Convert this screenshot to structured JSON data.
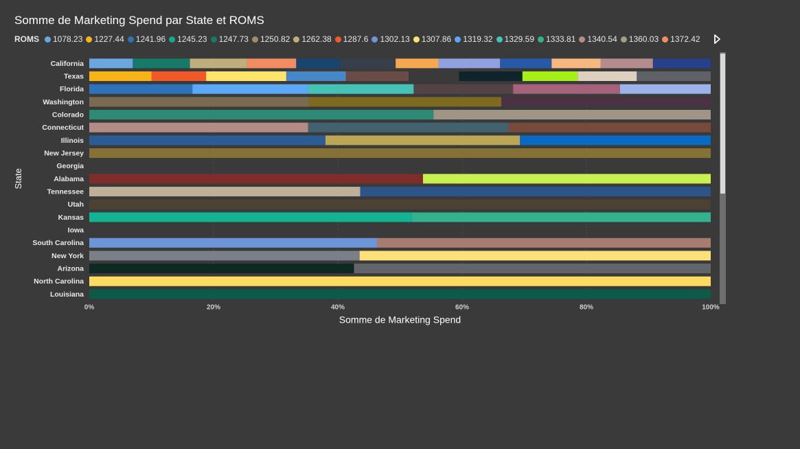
{
  "chart_data": {
    "type": "bar",
    "orientation": "horizontal",
    "stacking": "percent",
    "title": "Somme de Marketing Spend par State et ROMS",
    "xlabel": "Somme de Marketing Spend",
    "ylabel": "State",
    "xlim": [
      0,
      100
    ],
    "x_ticks": [
      "0%",
      "20%",
      "40%",
      "60%",
      "80%",
      "100%"
    ],
    "legend_label": "ROMS",
    "legend": [
      {
        "name": "1078.23",
        "color": "#6aa6e0"
      },
      {
        "name": "1227.44",
        "color": "#f6b418"
      },
      {
        "name": "1241.96",
        "color": "#2e73ba"
      },
      {
        "name": "1245.23",
        "color": "#14a98e"
      },
      {
        "name": "1247.73",
        "color": "#167a68"
      },
      {
        "name": "1250.82",
        "color": "#9e8d66"
      },
      {
        "name": "1262.38",
        "color": "#bfae7c"
      },
      {
        "name": "1287.6",
        "color": "#f05a28"
      },
      {
        "name": "1302.13",
        "color": "#6c96d8"
      },
      {
        "name": "1307.86",
        "color": "#fde46a"
      },
      {
        "name": "1319.32",
        "color": "#5aa8f6"
      },
      {
        "name": "1329.59",
        "color": "#45c1b5"
      },
      {
        "name": "1333.81",
        "color": "#33b38d"
      },
      {
        "name": "1340.54",
        "color": "#b48c86"
      },
      {
        "name": "1360.03",
        "color": "#a89c80"
      },
      {
        "name": "1372.42",
        "color": "#f28d62"
      }
    ],
    "categories": [
      "California",
      "Texas",
      "Florida",
      "Washington",
      "Colorado",
      "Connecticut",
      "Illinois",
      "New Jersey",
      "Georgia",
      "Alabama",
      "Tennessee",
      "Utah",
      "Kansas",
      "Iowa",
      "South Carolina",
      "New York",
      "Arizona",
      "North Carolina",
      "Louisiana"
    ],
    "stacks": [
      [
        {
          "value": 7,
          "color": "#6aa6e0"
        },
        {
          "value": 9.2,
          "color": "#167a68"
        },
        {
          "value": 9.2,
          "color": "#bfae7c"
        },
        {
          "value": 7.9,
          "color": "#f28d62"
        },
        {
          "value": 7.1,
          "color": "#16456f"
        },
        {
          "value": 8.9,
          "color": "#37404a"
        },
        {
          "value": 6.9,
          "color": "#f5a84f"
        },
        {
          "value": 9.9,
          "color": "#8fa1e0"
        },
        {
          "value": 8.3,
          "color": "#2858a8"
        },
        {
          "value": 7.9,
          "color": "#f7b880"
        },
        {
          "value": 8.4,
          "color": "#b48c8e"
        },
        {
          "value": 9.3,
          "color": "#27408b"
        }
      ],
      [
        {
          "value": 10,
          "color": "#f6b418"
        },
        {
          "value": 8.8,
          "color": "#f05a28"
        },
        {
          "value": 12.9,
          "color": "#fde46a"
        },
        {
          "value": 9.6,
          "color": "#4587c7"
        },
        {
          "value": 10.1,
          "color": "#6a4c46"
        },
        {
          "value": 8.1,
          "color": "#3a3a3a"
        },
        {
          "value": 10.2,
          "color": "#0e232a"
        },
        {
          "value": 8.9,
          "color": "#a6f018"
        },
        {
          "value": 9.5,
          "color": "#ddd0be"
        },
        {
          "value": 11.9,
          "color": "#5e6266"
        }
      ],
      [
        {
          "value": 16.6,
          "color": "#2e73ba"
        },
        {
          "value": 18.6,
          "color": "#5aa8f6"
        },
        {
          "value": 17,
          "color": "#45c1b5"
        },
        {
          "value": 16,
          "color": "#544344"
        },
        {
          "value": 17.2,
          "color": "#a4637a"
        },
        {
          "value": 14.6,
          "color": "#9cb2e8"
        }
      ],
      [
        {
          "value": 35.3,
          "color": "#7a6a50"
        },
        {
          "value": 31,
          "color": "#7d6a1e"
        },
        {
          "value": 33.7,
          "color": "#4a3242"
        }
      ],
      [
        {
          "value": 55.4,
          "color": "#2e8b73"
        },
        {
          "value": 44.6,
          "color": "#a09486"
        }
      ],
      [
        {
          "value": 35.2,
          "color": "#b48c86"
        },
        {
          "value": 32.3,
          "color": "#426270"
        },
        {
          "value": 32.5,
          "color": "#784a3a"
        }
      ],
      [
        {
          "value": 38,
          "color": "#2c5c94"
        },
        {
          "value": 31.3,
          "color": "#bba556"
        },
        {
          "value": 30.7,
          "color": "#0a6ac2"
        }
      ],
      [
        {
          "value": 100,
          "color": "#857136"
        }
      ],
      [],
      [
        {
          "value": 53.7,
          "color": "#7e2e2a"
        },
        {
          "value": 46.3,
          "color": "#c8f050"
        }
      ],
      [
        {
          "value": 43.6,
          "color": "#bdb096"
        },
        {
          "value": 56.4,
          "color": "#2c5488"
        }
      ],
      [
        {
          "value": 100,
          "color": "#4c4234"
        }
      ],
      [
        {
          "value": 51.9,
          "color": "#12b494"
        },
        {
          "value": 48.1,
          "color": "#33b38d"
        }
      ],
      [],
      [
        {
          "value": 46.3,
          "color": "#6c96d8"
        },
        {
          "value": 53.7,
          "color": "#a87c6e"
        }
      ],
      [
        {
          "value": 43.5,
          "color": "#7a8086"
        },
        {
          "value": 56.5,
          "color": "#fde07a"
        }
      ],
      [
        {
          "value": 42.6,
          "color": "#0c2a22"
        },
        {
          "value": 57.4,
          "color": "#62666a"
        }
      ],
      [
        {
          "value": 100,
          "color": "#fddc60"
        }
      ],
      [
        {
          "value": 100,
          "color": "#0e5a48"
        }
      ]
    ],
    "grid": true,
    "legend_position": "top-left"
  }
}
